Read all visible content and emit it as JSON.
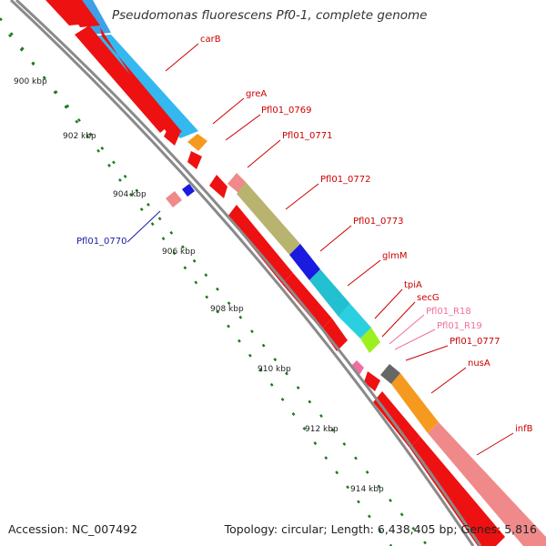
{
  "title": "Pseudomonas fluorescens Pf0-1, complete genome",
  "footer": {
    "accession": "Accession: NC_007492",
    "topology": "Topology: circular; Length: 6,438,405 bp; Genes: 5,816"
  },
  "colors": {
    "background": "#ffffff",
    "backbone": "#8a8a8a",
    "tick": "#1f7a1f",
    "cds": "#ee1111",
    "cds_label": "#cc0000",
    "rna_label": "#f06ea0",
    "highlight_label": "#1a1aa0"
  },
  "kbp_labels": [
    "900 kbp",
    "902 kbp",
    "904 kbp",
    "906 kbp",
    "908 kbp",
    "910 kbp",
    "912 kbp",
    "914 kbp"
  ],
  "gene_labels": [
    {
      "text": "carB",
      "color": "#cc0000"
    },
    {
      "text": "greA",
      "color": "#cc0000"
    },
    {
      "text": "Pfl01_0769",
      "color": "#cc0000"
    },
    {
      "text": "Pfl01_0771",
      "color": "#cc0000"
    },
    {
      "text": "Pfl01_0772",
      "color": "#cc0000"
    },
    {
      "text": "Pfl01_0773",
      "color": "#cc0000"
    },
    {
      "text": "glmM",
      "color": "#cc0000"
    },
    {
      "text": "tpiA",
      "color": "#cc0000"
    },
    {
      "text": "secG",
      "color": "#cc0000"
    },
    {
      "text": "Pfl01_R18",
      "color": "#f06ea0"
    },
    {
      "text": "Pfl01_R19",
      "color": "#f06ea0"
    },
    {
      "text": "Pfl01_0777",
      "color": "#cc0000"
    },
    {
      "text": "nusA",
      "color": "#cc0000"
    },
    {
      "text": "infB",
      "color": "#cc0000"
    },
    {
      "text": "Pfl01_0770",
      "color": "#1a1aa0"
    }
  ]
}
